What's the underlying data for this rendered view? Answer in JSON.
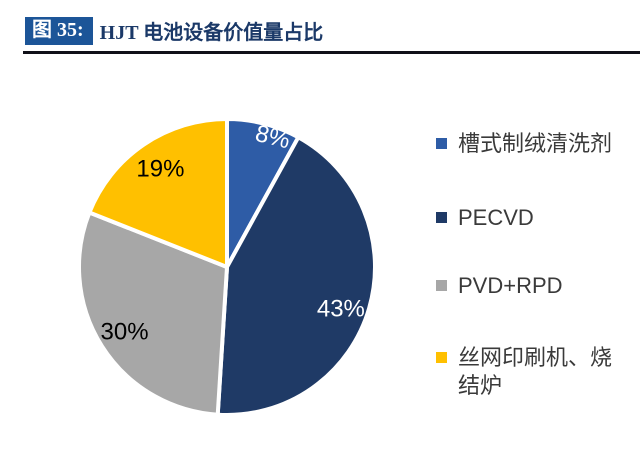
{
  "header": {
    "figure_label": "图 35:",
    "title": "HJT 电池设备价值量占比"
  },
  "chart_data": {
    "type": "pie",
    "title": "HJT 电池设备价值量占比",
    "unit": "%",
    "start_angle_deg": 0,
    "direction": "clockwise",
    "legend_position": "right",
    "slices": [
      {
        "label": "槽式制绒清洗剂",
        "value": 8,
        "display": "8%",
        "color": "#2E5CA6",
        "label_color": "#FFFFFF"
      },
      {
        "label": "PECVD",
        "value": 43,
        "display": "43%",
        "color": "#1F3A66",
        "label_color": "#FFFFFF"
      },
      {
        "label": "PVD+RPD",
        "value": 30,
        "display": "30%",
        "color": "#A7A7A7",
        "label_color": "#000000"
      },
      {
        "label": "丝网印刷机、烧结炉",
        "value": 19,
        "display": "19%",
        "color": "#FFC000",
        "label_color": "#000000"
      }
    ]
  },
  "colors": {
    "figure_label_bg": "#1C5598",
    "title_text": "#1B3968",
    "rule": "#101018",
    "legend_text": "#3A3A3A",
    "slice_border": "#FFFFFF",
    "background": "#FFFFFF"
  }
}
